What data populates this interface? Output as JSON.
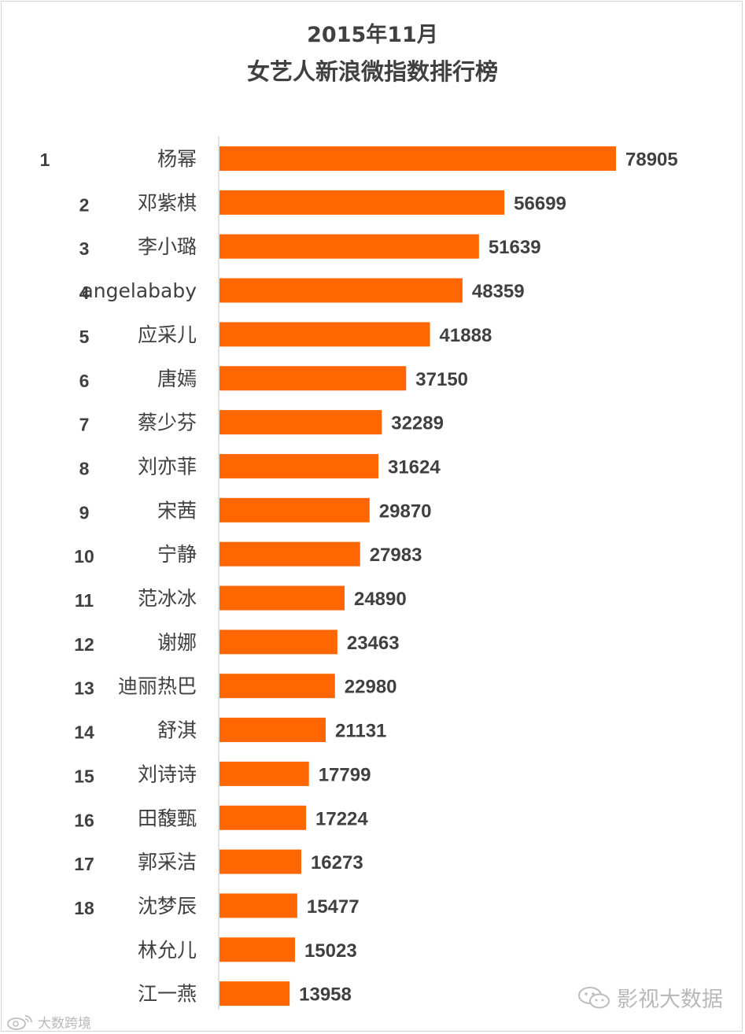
{
  "chart_data": {
    "type": "bar",
    "orientation": "horizontal",
    "title": [
      "2015年11月",
      "女艺人新浪微指数排行榜"
    ],
    "ranks": [
      "1",
      "2",
      "3",
      "4",
      "5",
      "6",
      "7",
      "8",
      "9",
      "10",
      "11",
      "12",
      "13",
      "14",
      "15",
      "16",
      "17",
      "18",
      "",
      ""
    ],
    "categories": [
      "杨幂",
      "邓紫棋",
      "李小璐",
      "angelababy",
      "应采儿",
      "唐嫣",
      "蔡少芬",
      "刘亦菲",
      "宋茜",
      "宁静",
      "范冰冰",
      "谢娜",
      "迪丽热巴",
      "舒淇",
      "刘诗诗",
      "田馥甄",
      "郭采洁",
      "沈梦辰",
      "林允儿",
      "江一燕"
    ],
    "values": [
      78905,
      56699,
      51639,
      48359,
      41888,
      37150,
      32289,
      31624,
      29870,
      27983,
      24890,
      23463,
      22980,
      21131,
      17799,
      17224,
      16273,
      15477,
      15023,
      13958
    ],
    "xlim": [
      0,
      78905
    ],
    "grid": false,
    "legend": "none",
    "colors": {
      "bar": "#ff6600",
      "label": "#404040",
      "axis": "#d9d9d9"
    }
  },
  "watermarks": {
    "right": "影视大数据",
    "right_icon": "wechat-icon",
    "left": "大数跨境",
    "left_icon": "weibo-icon"
  }
}
